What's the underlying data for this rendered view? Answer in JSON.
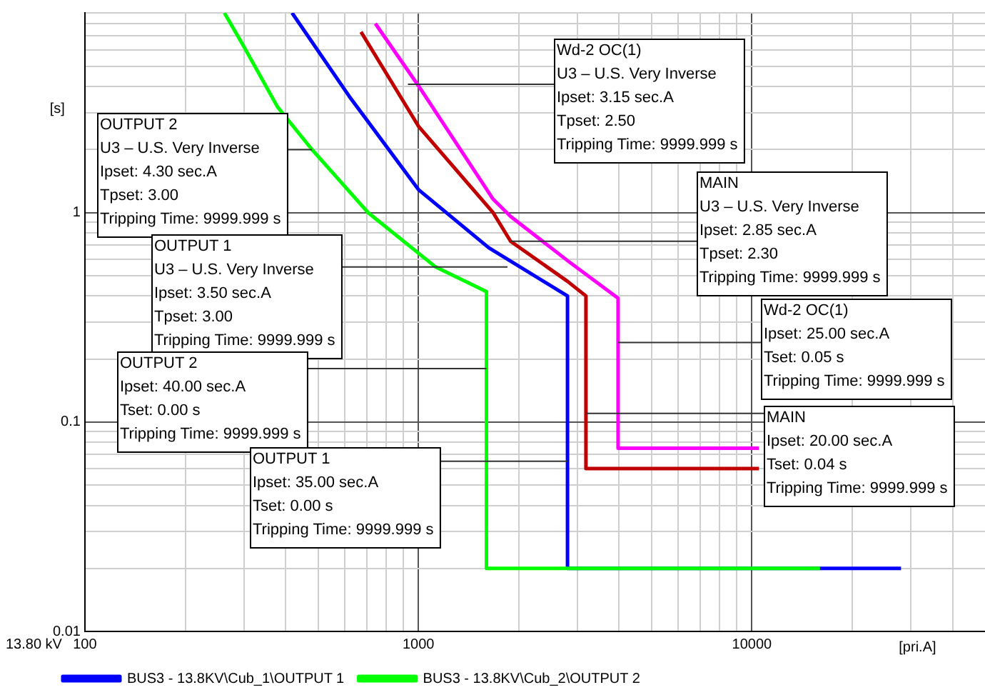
{
  "chart_data": {
    "type": "line",
    "xlabel": "[pri.A]",
    "ylabel": "[s]",
    "log": "xy",
    "grid": true,
    "legend": "bottom",
    "xlim": [
      100,
      50000
    ],
    "ylim": [
      0.01,
      9
    ],
    "xticks": [
      100,
      {
        "value": 200,
        "label": null
      },
      {
        "value": 300,
        "label": null
      },
      {
        "value": 400,
        "label": null
      },
      {
        "value": 500,
        "label": null
      },
      {
        "value": 600,
        "label": null
      },
      {
        "value": 700,
        "label": null
      },
      {
        "value": 800,
        "label": null
      },
      {
        "value": 900,
        "label": null
      },
      1000,
      {
        "value": 2000,
        "label": null
      },
      {
        "value": 3000,
        "label": null
      },
      {
        "value": 4000,
        "label": null
      },
      {
        "value": 5000,
        "label": null
      },
      {
        "value": 6000,
        "label": null
      },
      {
        "value": 7000,
        "label": null
      },
      {
        "value": 8000,
        "label": null
      },
      {
        "value": 9000,
        "label": null
      },
      10000,
      {
        "value": 20000,
        "label": null
      },
      {
        "value": 30000,
        "label": null
      },
      {
        "value": 40000,
        "label": null
      }
    ],
    "yticks": [
      0.01,
      {
        "value": 0.02,
        "label": null
      },
      {
        "value": 0.03,
        "label": null
      },
      {
        "value": 0.04,
        "label": null
      },
      {
        "value": 0.05,
        "label": null
      },
      {
        "value": 0.06,
        "label": null
      },
      {
        "value": 0.07,
        "label": null
      },
      {
        "value": 0.08,
        "label": null
      },
      {
        "value": 0.09,
        "label": null
      },
      0.1,
      {
        "value": 0.2,
        "label": null
      },
      {
        "value": 0.3,
        "label": null
      },
      {
        "value": 0.4,
        "label": null
      },
      {
        "value": 0.5,
        "label": null
      },
      {
        "value": 0.6,
        "label": null
      },
      {
        "value": 0.7,
        "label": null
      },
      {
        "value": 0.8,
        "label": null
      },
      {
        "value": 0.9,
        "label": null
      },
      1,
      {
        "value": 2,
        "label": null
      },
      {
        "value": 3,
        "label": null
      },
      {
        "value": 4,
        "label": null
      },
      {
        "value": 5,
        "label": null
      },
      {
        "value": 6,
        "label": null
      },
      {
        "value": 7,
        "label": null
      },
      {
        "value": 8,
        "label": null
      },
      {
        "value": 9,
        "label": null
      }
    ],
    "series": [
      {
        "type": "line",
        "name": "BUS3 - 13.8KV\\Cub_1\\OUTPUT 1",
        "color": "#0000ff",
        "x": [
          418,
          620,
          1000,
          1626,
          2800,
          2800,
          28000
        ],
        "values": [
          9,
          3.6,
          1.29,
          0.68,
          0.4,
          0.02,
          0.02
        ]
      },
      {
        "type": "line",
        "name": "BUS3 - 13.8KV\\Cub_2\\OUTPUT 2",
        "color": "#00ff00",
        "x": [
          262,
          300,
          378,
          480,
          707,
          1127,
          1600,
          1600,
          16000
        ],
        "values": [
          9,
          6.2,
          3.2,
          2.0,
          1,
          0.55,
          0.42,
          0.02,
          0.02
        ]
      },
      {
        "type": "line",
        "color": "#c00000",
        "x": [
          673,
          1000,
          1675,
          1890,
          2800,
          3180,
          3180,
          10500
        ],
        "values": [
          7.3,
          2.59,
          1,
          0.73,
          0.47,
          0.4,
          0.06,
          0.06
        ]
      },
      {
        "type": "line",
        "color": "#ff00ff",
        "x": [
          743,
          1000,
          1675,
          1890,
          2800,
          3970,
          3970,
          10500
        ],
        "values": [
          8,
          4.04,
          1.16,
          0.96,
          0.59,
          0.39,
          0.075,
          0.075
        ]
      }
    ],
    "annotations": [
      {
        "text": "OUTPUT 2\nU3 – U.S. Very Inverse\nIpset: 4.30 sec.A\nTpset: 3.00\nTripping Time: 9999.999 s",
        "x": 480,
        "y": 2
      },
      {
        "text": "OUTPUT 1\nU3 – U.S. Very Inverse\nIpset: 3.50 sec.A\nTpset: 3.00\nTripping Time: 9999.999 s",
        "x": 1850,
        "y": 0.55
      },
      {
        "text": "OUTPUT 2\nIpset: 40.00 sec.A\nTset: 0.00 s\nTripping Time: 9999.999 s",
        "x": 1600,
        "y": 0.18
      },
      {
        "text": "OUTPUT 1\nIpset: 35.00 sec.A\nTset: 0.00 s\nTripping Time: 9999.999 s",
        "x": 2800,
        "y": 0.065
      },
      {
        "text": "Wd-2 OC(1)\nU3 – U.S. Very Inverse\nIpset: 3.15 sec.A\nTpset: 2.50\nTripping Time: 9999.999 s",
        "x": 930,
        "y": 4.1
      },
      {
        "text": "MAIN\nU3 – U.S. Very Inverse\nIpset: 2.85 sec.A\nTpset: 2.30\nTripping Time: 9999.999 s",
        "x": 1890,
        "y": 0.73
      },
      {
        "text": "Wd-2 OC(1)\nIpset: 25.00 sec.A\nTset: 0.05 s\nTripping Time: 9999.999 s",
        "x": 3970,
        "y": 0.24
      },
      {
        "text": "MAIN\nIpset: 20.00 sec.A\nTset: 0.04 s\nTripping Time: 9999.999 s",
        "x": 3180,
        "y": 0.11
      },
      "13.80 kV"
    ]
  }
}
